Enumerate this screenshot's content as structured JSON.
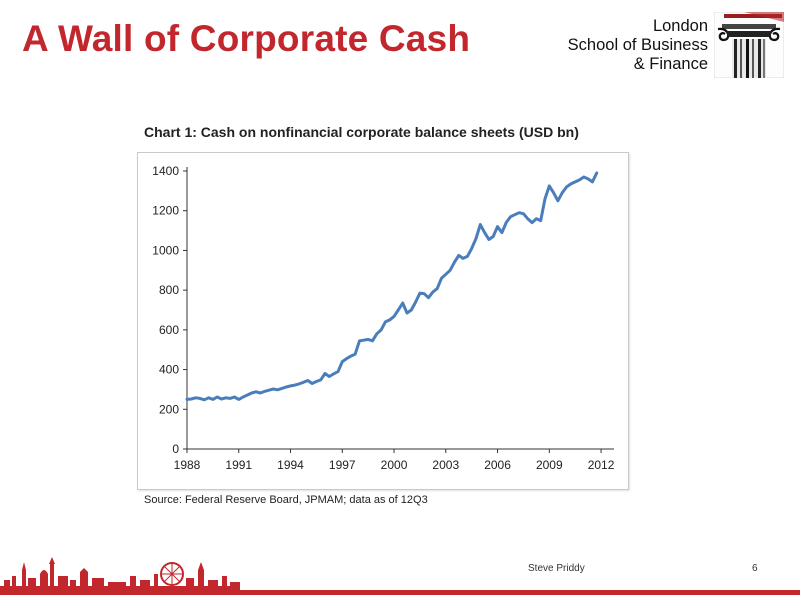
{
  "slide": {
    "title": "A Wall of Corporate Cash",
    "author": "Steve Priddy",
    "page_number": "6"
  },
  "logo": {
    "line1": "London",
    "line2": "School of Business",
    "line3": "& Finance",
    "icon": "ionic-column-icon"
  },
  "colors": {
    "brand_red": "#c1272d",
    "series_line": "#4a7ebb"
  },
  "chart_data": {
    "type": "line",
    "title": "Chart 1: Cash on nonfinancial corporate balance sheets (USD bn)",
    "source": "Source: Federal Reserve Board, JPMAM; data as of 12Q3",
    "xlabel": "",
    "ylabel": "",
    "xlim": [
      1988,
      2012.75
    ],
    "ylim": [
      0,
      1400
    ],
    "x_ticks": [
      1988,
      1991,
      1994,
      1997,
      2000,
      2003,
      2006,
      2009,
      2012
    ],
    "y_ticks": [
      0,
      200,
      400,
      600,
      800,
      1000,
      1200,
      1400
    ],
    "grid": false,
    "legend": "none",
    "series": [
      {
        "values": [
          [
            1988.0,
            250
          ],
          [
            1988.25,
            252
          ],
          [
            1988.5,
            258
          ],
          [
            1988.75,
            255
          ],
          [
            1989.0,
            248
          ],
          [
            1989.25,
            258
          ],
          [
            1989.5,
            250
          ],
          [
            1989.75,
            262
          ],
          [
            1990.0,
            252
          ],
          [
            1990.25,
            258
          ],
          [
            1990.5,
            255
          ],
          [
            1990.75,
            262
          ],
          [
            1991.0,
            250
          ],
          [
            1991.25,
            262
          ],
          [
            1991.5,
            272
          ],
          [
            1991.75,
            282
          ],
          [
            1992.0,
            288
          ],
          [
            1992.25,
            282
          ],
          [
            1992.5,
            290
          ],
          [
            1992.75,
            296
          ],
          [
            1993.0,
            302
          ],
          [
            1993.25,
            298
          ],
          [
            1993.5,
            305
          ],
          [
            1993.75,
            312
          ],
          [
            1994.0,
            318
          ],
          [
            1994.25,
            322
          ],
          [
            1994.5,
            328
          ],
          [
            1994.75,
            336
          ],
          [
            1995.0,
            345
          ],
          [
            1995.25,
            330
          ],
          [
            1995.5,
            340
          ],
          [
            1995.75,
            348
          ],
          [
            1996.0,
            380
          ],
          [
            1996.25,
            365
          ],
          [
            1996.5,
            378
          ],
          [
            1996.75,
            390
          ],
          [
            1997.0,
            440
          ],
          [
            1997.25,
            455
          ],
          [
            1997.5,
            468
          ],
          [
            1997.75,
            478
          ],
          [
            1998.0,
            545
          ],
          [
            1998.25,
            548
          ],
          [
            1998.5,
            552
          ],
          [
            1998.75,
            545
          ],
          [
            1999.0,
            580
          ],
          [
            1999.25,
            600
          ],
          [
            1999.5,
            640
          ],
          [
            1999.75,
            650
          ],
          [
            2000.0,
            668
          ],
          [
            2000.25,
            700
          ],
          [
            2000.5,
            735
          ],
          [
            2000.75,
            685
          ],
          [
            2001.0,
            700
          ],
          [
            2001.25,
            740
          ],
          [
            2001.5,
            785
          ],
          [
            2001.75,
            782
          ],
          [
            2002.0,
            762
          ],
          [
            2002.25,
            790
          ],
          [
            2002.5,
            808
          ],
          [
            2002.75,
            860
          ],
          [
            2003.0,
            880
          ],
          [
            2003.25,
            900
          ],
          [
            2003.5,
            940
          ],
          [
            2003.75,
            975
          ],
          [
            2004.0,
            960
          ],
          [
            2004.25,
            970
          ],
          [
            2004.5,
            1010
          ],
          [
            2004.75,
            1060
          ],
          [
            2005.0,
            1130
          ],
          [
            2005.25,
            1090
          ],
          [
            2005.5,
            1055
          ],
          [
            2005.75,
            1070
          ],
          [
            2006.0,
            1120
          ],
          [
            2006.25,
            1090
          ],
          [
            2006.5,
            1140
          ],
          [
            2006.75,
            1170
          ],
          [
            2007.0,
            1180
          ],
          [
            2007.25,
            1190
          ],
          [
            2007.5,
            1185
          ],
          [
            2007.75,
            1160
          ],
          [
            2008.0,
            1140
          ],
          [
            2008.25,
            1160
          ],
          [
            2008.5,
            1150
          ],
          [
            2008.75,
            1260
          ],
          [
            2009.0,
            1325
          ],
          [
            2009.25,
            1290
          ],
          [
            2009.5,
            1250
          ],
          [
            2009.75,
            1290
          ],
          [
            2010.0,
            1320
          ],
          [
            2010.25,
            1335
          ],
          [
            2010.5,
            1345
          ],
          [
            2010.75,
            1355
          ],
          [
            2011.0,
            1370
          ],
          [
            2011.25,
            1360
          ],
          [
            2011.5,
            1345
          ],
          [
            2011.75,
            1390
          ]
        ]
      }
    ]
  }
}
